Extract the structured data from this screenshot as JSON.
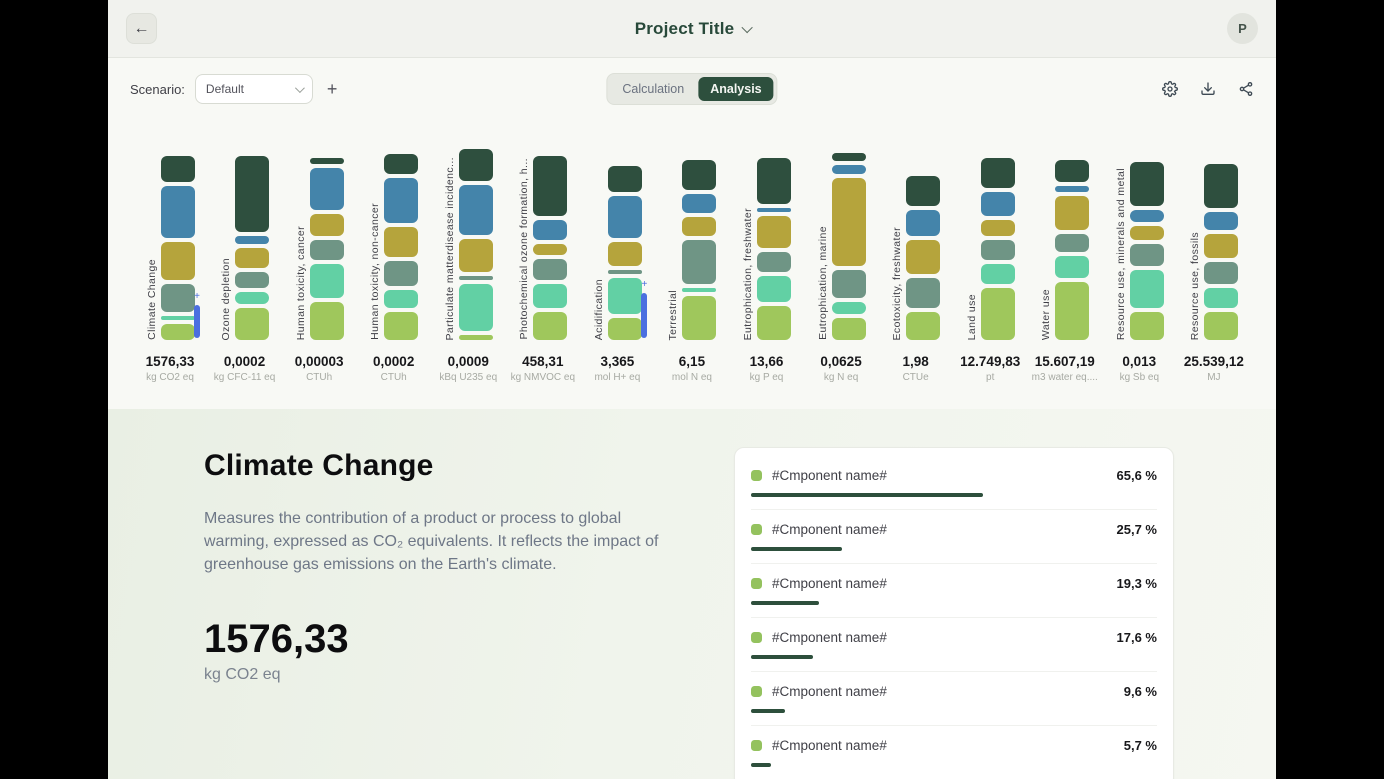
{
  "colors": {
    "accent_dark_green": "#2d4f3d",
    "annotation_blue": "#4b6fe0",
    "component_dot_green": "#94c25e",
    "progress_bar_green": "#2d4f3c"
  },
  "header": {
    "back_label": "←",
    "title": "Project Title",
    "avatar_initial": "P"
  },
  "toolbar": {
    "scenario_label": "Scenario:",
    "scenario_value": "Default",
    "add_label": "+",
    "tabs": [
      {
        "label": "Calculation",
        "active": false
      },
      {
        "label": "Analysis",
        "active": true
      }
    ],
    "icons": [
      "settings-icon",
      "download-icon",
      "share-icon"
    ]
  },
  "chart_data": {
    "type": "bar",
    "stacked": true,
    "orientation": "vertical",
    "legend": "none",
    "series_order": [
      "dark_green",
      "blue",
      "mustard",
      "sage",
      "turquoise",
      "light_green"
    ],
    "series_colors": {
      "dark_green": "#2e4f3e",
      "blue": "#4484aa",
      "mustard": "#b5a43c",
      "sage": "#6f9585",
      "turquoise": "#62d0a4",
      "light_green": "#9fc75c"
    },
    "categories": [
      {
        "label": "Climate Change",
        "value": "1576,33",
        "unit": "kg CO2 eq",
        "segments": [
          26,
          52,
          38,
          28,
          4,
          16
        ],
        "marker": true,
        "marker_height": 33
      },
      {
        "label": "Ozone depletion",
        "value": "0,0002",
        "unit": "kg CFC-11 eq",
        "segments": [
          76,
          8,
          20,
          16,
          12,
          32
        ],
        "marker": false,
        "marker_height": 0
      },
      {
        "label": "Human toxicity, cancer",
        "value": "0,00003",
        "unit": "CTUh",
        "segments": [
          6,
          42,
          22,
          20,
          34,
          38
        ],
        "marker": false,
        "marker_height": 0
      },
      {
        "label": "Human toxicity, non-cancer",
        "value": "0,0002",
        "unit": "CTUh",
        "segments": [
          20,
          45,
          30,
          25,
          18,
          28
        ],
        "marker": false,
        "marker_height": 0
      },
      {
        "label": "Particulate matterdisease incidenc...",
        "value": "0,0009",
        "unit": "kBq U235 eq",
        "segments": [
          32,
          50,
          33,
          4,
          47,
          5
        ],
        "marker": false,
        "marker_height": 0
      },
      {
        "label": "Photochemical ozone formation, h...",
        "value": "458,31",
        "unit": "kg NMVOC eq",
        "segments": [
          60,
          20,
          11,
          21,
          24,
          28
        ],
        "marker": false,
        "marker_height": 0
      },
      {
        "label": "Acidification",
        "value": "3,365",
        "unit": "mol H+ eq",
        "segments": [
          26,
          42,
          24,
          4,
          36,
          22
        ],
        "marker": true,
        "marker_height": 45
      },
      {
        "label": "Terrestrial",
        "value": "6,15",
        "unit": "mol N eq",
        "segments": [
          30,
          19,
          19,
          44,
          4,
          44
        ],
        "marker": false,
        "marker_height": 0
      },
      {
        "label": "Eutrophication, freshwater",
        "value": "13,66",
        "unit": "kg P eq",
        "segments": [
          46,
          4,
          32,
          20,
          26,
          34
        ],
        "marker": false,
        "marker_height": 0
      },
      {
        "label": "Eutrophication, marine",
        "value": "0,0625",
        "unit": "kg N eq",
        "segments": [
          8,
          9,
          88,
          28,
          12,
          22
        ],
        "marker": false,
        "marker_height": 0
      },
      {
        "label": "Ecotoxicity, freshwater",
        "value": "1,98",
        "unit": "CTUe",
        "segments": [
          30,
          26,
          34,
          30,
          0,
          28
        ],
        "marker": false,
        "marker_height": 0
      },
      {
        "label": "Land use",
        "value": "12.749,83",
        "unit": "pt",
        "segments": [
          30,
          24,
          16,
          20,
          20,
          52
        ],
        "marker": false,
        "marker_height": 0
      },
      {
        "label": "Water use",
        "value": "15.607,19",
        "unit": "m3 water eq....",
        "segments": [
          22,
          6,
          34,
          18,
          22,
          58
        ],
        "marker": false,
        "marker_height": 0
      },
      {
        "label": "Resource use, minerals and metal",
        "value": "0,013",
        "unit": "kg Sb eq",
        "segments": [
          44,
          12,
          14,
          22,
          38,
          28
        ],
        "marker": false,
        "marker_height": 0
      },
      {
        "label": "Resource use, fossils",
        "value": "25.539,12",
        "unit": "MJ",
        "segments": [
          44,
          18,
          24,
          22,
          20,
          28
        ],
        "marker": false,
        "marker_height": 0
      }
    ]
  },
  "detail": {
    "title": "Climate Change",
    "description": "Measures the contribution of a product or process to global warming, expressed as CO₂ equivalents. It reflects the impact of greenhouse gas emissions on the Earth's climate.",
    "value": "1576,33",
    "unit": "kg CO2 eq",
    "components": [
      {
        "name": "#Cmponent name#",
        "pct_label": "65,6 %",
        "pct": 65.6
      },
      {
        "name": "#Cmponent name#",
        "pct_label": "25,7 %",
        "pct": 25.7
      },
      {
        "name": "#Cmponent name#",
        "pct_label": "19,3 %",
        "pct": 19.3
      },
      {
        "name": "#Cmponent name#",
        "pct_label": "17,6 %",
        "pct": 17.6
      },
      {
        "name": "#Cmponent name#",
        "pct_label": "9,6 %",
        "pct": 9.6
      },
      {
        "name": "#Cmponent name#",
        "pct_label": "5,7 %",
        "pct": 5.7
      }
    ]
  }
}
